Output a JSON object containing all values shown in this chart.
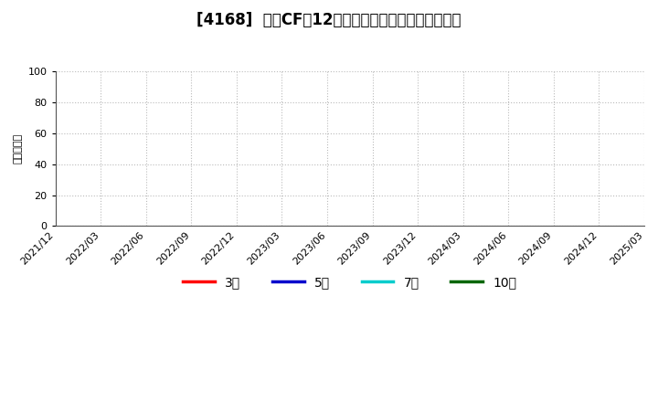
{
  "title": "[4168]  営業CFだ12か月移動合計の標準偏差の推移",
  "ylabel": "（百万円）",
  "ylim": [
    0,
    100
  ],
  "yticks": [
    0,
    20,
    40,
    60,
    80,
    100
  ],
  "xtick_labels": [
    "2021/12",
    "2022/03",
    "2022/06",
    "2022/09",
    "2022/12",
    "2023/03",
    "2023/06",
    "2023/09",
    "2023/12",
    "2024/03",
    "2024/06",
    "2024/09",
    "2024/12",
    "2025/03"
  ],
  "legend_entries": [
    {
      "label": "3年",
      "color": "#ff0000"
    },
    {
      "label": "5年",
      "color": "#0000cc"
    },
    {
      "label": "7年",
      "color": "#00cccc"
    },
    {
      "label": "10年",
      "color": "#006600"
    }
  ],
  "background_color": "#ffffff",
  "grid_color": "#bbbbbb",
  "title_fontsize": 12,
  "axis_fontsize": 8,
  "legend_fontsize": 10
}
